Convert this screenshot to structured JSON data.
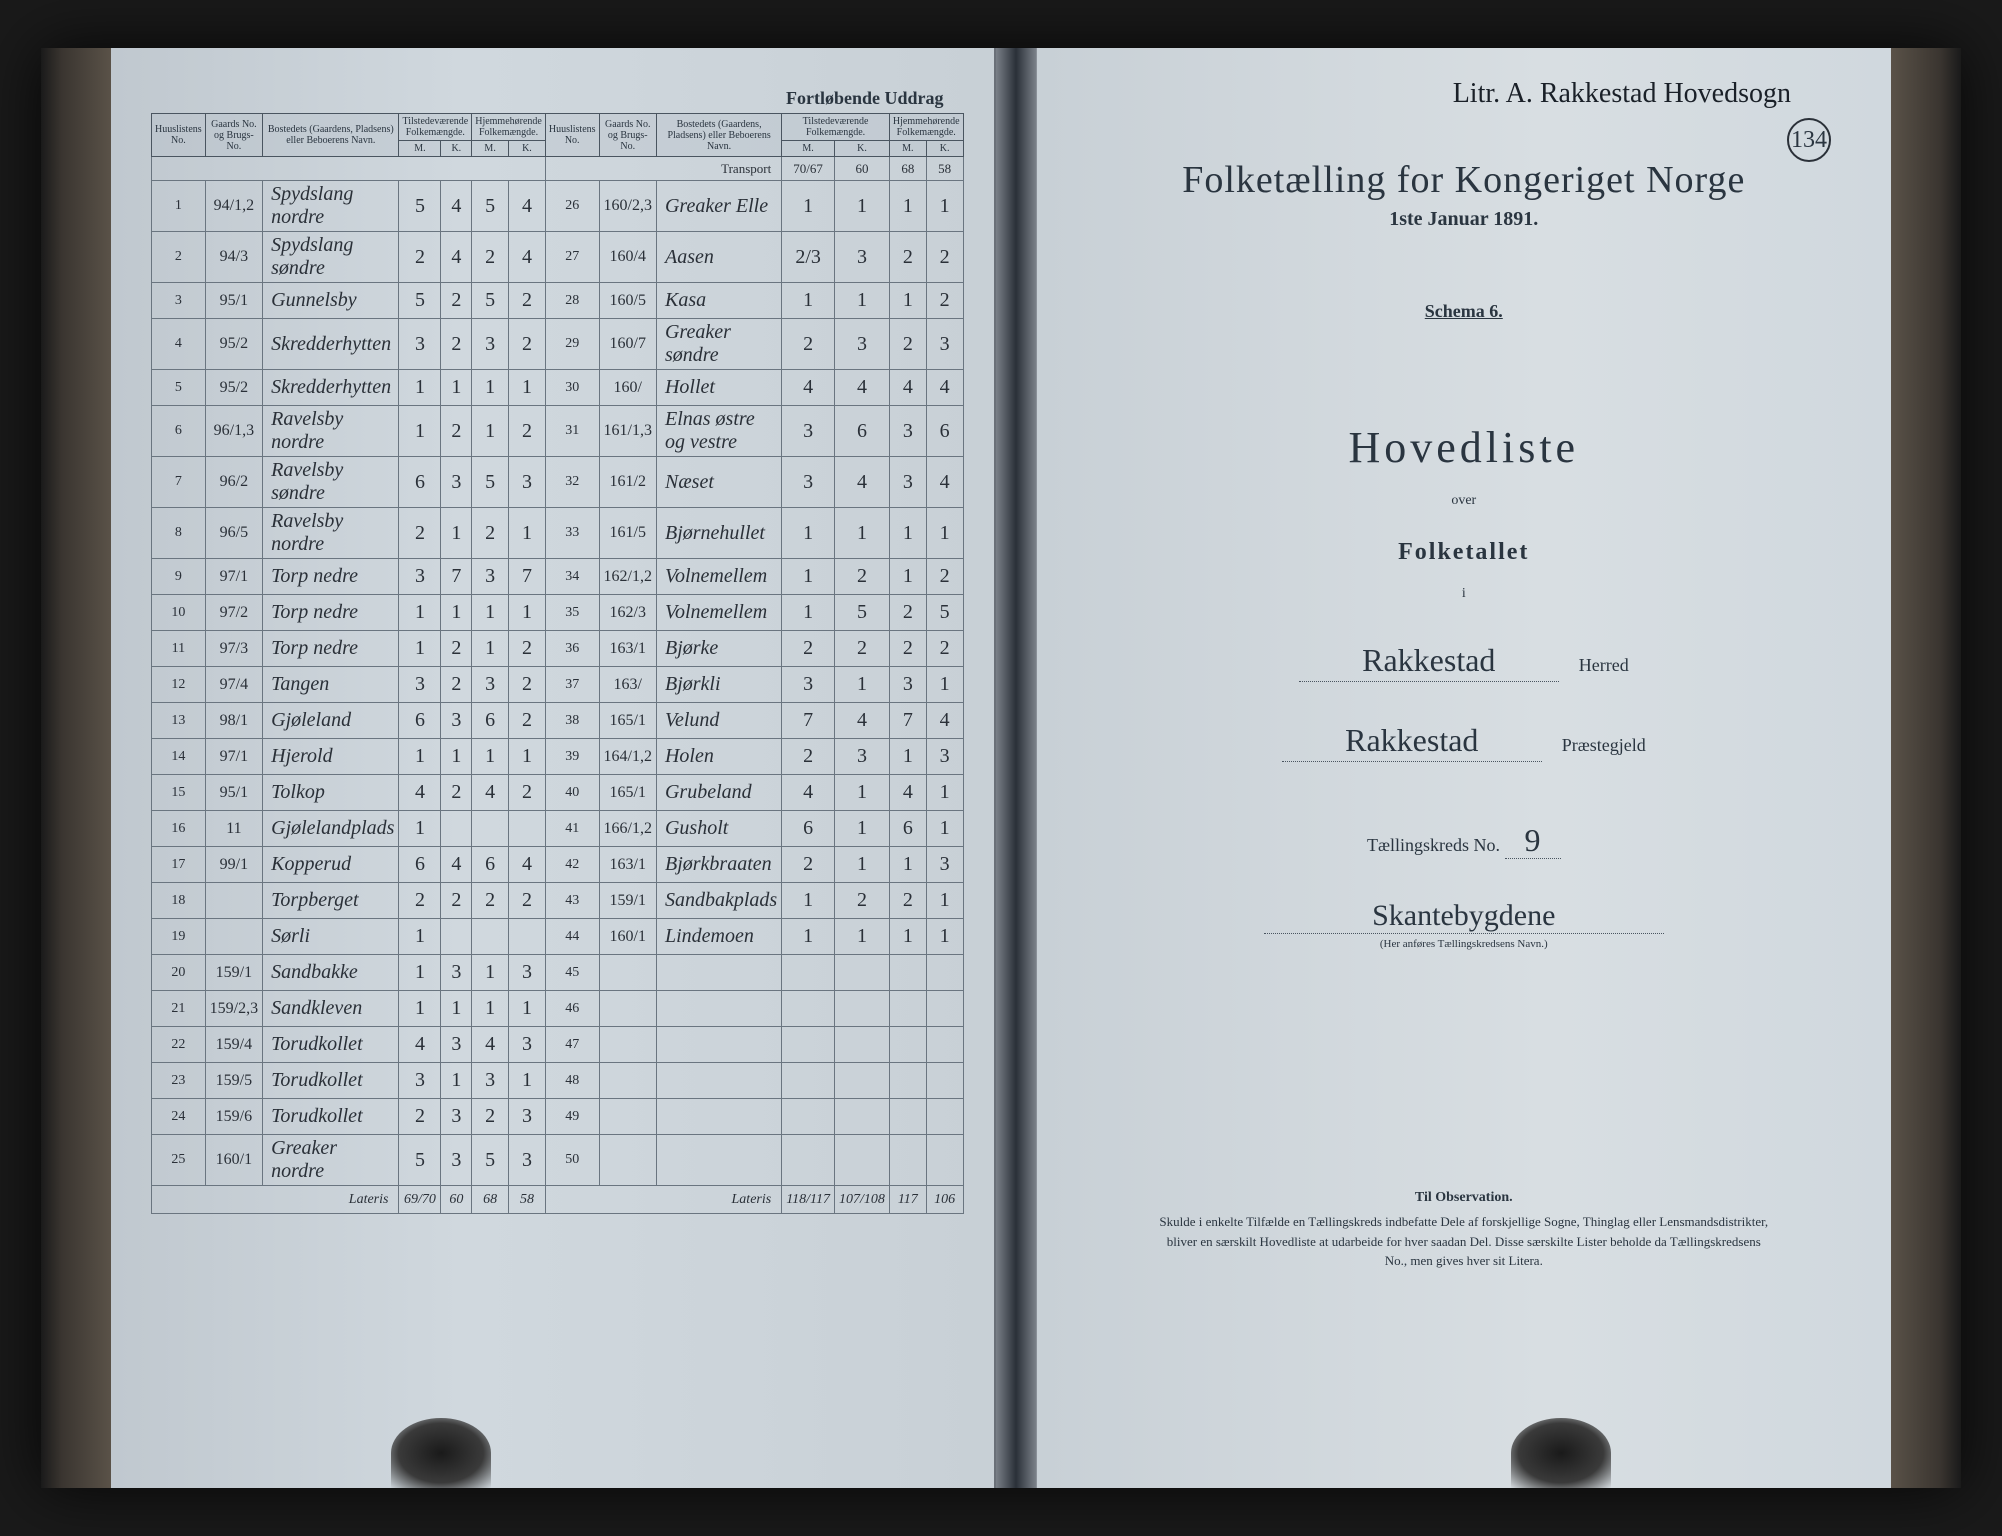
{
  "leftPage": {
    "headerRight": "Fortløbende Uddrag",
    "columnHeaders": {
      "huusliste": "Huuslistens No.",
      "gaardNo": "Gaards No. og Brugs-No.",
      "bosted": "Bostedets (Gaardens, Pladsens) eller Beboerens Navn.",
      "tilstede": "Tilstedeværende Folkemængde.",
      "hjemme": "Hjemmehørende Folkemængde.",
      "m": "M.",
      "k": "K."
    },
    "transport": "Transport",
    "transportVals": [
      "70/67",
      "60",
      "68",
      "58"
    ],
    "rowsLeft": [
      {
        "n": "1",
        "g": "94/1,2",
        "name": "Spydslang nordre",
        "t": [
          "5",
          "4"
        ],
        "h": [
          "5",
          "4"
        ]
      },
      {
        "n": "2",
        "g": "94/3",
        "name": "Spydslang søndre",
        "t": [
          "2",
          "4"
        ],
        "h": [
          "2",
          "4"
        ]
      },
      {
        "n": "3",
        "g": "95/1",
        "name": "Gunnelsby",
        "t": [
          "5",
          "2"
        ],
        "h": [
          "5",
          "2"
        ]
      },
      {
        "n": "4",
        "g": "95/2",
        "name": "Skredderhytten",
        "t": [
          "3",
          "2"
        ],
        "h": [
          "3",
          "2"
        ]
      },
      {
        "n": "5",
        "g": "95/2",
        "name": "Skredderhytten",
        "t": [
          "1",
          "1"
        ],
        "h": [
          "1",
          "1"
        ]
      },
      {
        "n": "6",
        "g": "96/1,3",
        "name": "Ravelsby nordre",
        "t": [
          "1",
          "2"
        ],
        "h": [
          "1",
          "2"
        ]
      },
      {
        "n": "7",
        "g": "96/2",
        "name": "Ravelsby søndre",
        "t": [
          "6",
          "3"
        ],
        "h": [
          "5",
          "3"
        ]
      },
      {
        "n": "8",
        "g": "96/5",
        "name": "Ravelsby nordre",
        "t": [
          "2",
          "1"
        ],
        "h": [
          "2",
          "1"
        ]
      },
      {
        "n": "9",
        "g": "97/1",
        "name": "Torp nedre",
        "t": [
          "3",
          "7"
        ],
        "h": [
          "3",
          "7"
        ]
      },
      {
        "n": "10",
        "g": "97/2",
        "name": "Torp nedre",
        "t": [
          "1",
          "1"
        ],
        "h": [
          "1",
          "1"
        ]
      },
      {
        "n": "11",
        "g": "97/3",
        "name": "Torp nedre",
        "t": [
          "1",
          "2"
        ],
        "h": [
          "1",
          "2"
        ]
      },
      {
        "n": "12",
        "g": "97/4",
        "name": "Tangen",
        "t": [
          "3",
          "2"
        ],
        "h": [
          "3",
          "2"
        ]
      },
      {
        "n": "13",
        "g": "98/1",
        "name": "Gjøleland",
        "t": [
          "6",
          "3"
        ],
        "h": [
          "6",
          "2"
        ]
      },
      {
        "n": "14",
        "g": "97/1",
        "name": "Hjerold",
        "t": [
          "1",
          "1"
        ],
        "h": [
          "1",
          "1"
        ]
      },
      {
        "n": "15",
        "g": "95/1",
        "name": "Tolkop",
        "t": [
          "4",
          "2"
        ],
        "h": [
          "4",
          "2"
        ]
      },
      {
        "n": "16",
        "g": "11",
        "name": "Gjølelandplads",
        "t": [
          "1",
          "",
          "1",
          ""
        ],
        "h": [
          "",
          ""
        ]
      },
      {
        "n": "17",
        "g": "99/1",
        "name": "Kopperud",
        "t": [
          "6",
          "4"
        ],
        "h": [
          "6",
          "4"
        ]
      },
      {
        "n": "18",
        "g": "",
        "name": "Torpberget",
        "t": [
          "2",
          "2"
        ],
        "h": [
          "2",
          "2"
        ]
      },
      {
        "n": "19",
        "g": "",
        "name": "Sørli",
        "t": [
          "1",
          "",
          "1",
          ""
        ],
        "h": [
          "",
          ""
        ]
      },
      {
        "n": "20",
        "g": "159/1",
        "name": "Sandbakke",
        "t": [
          "1",
          "3"
        ],
        "h": [
          "1",
          "3"
        ]
      },
      {
        "n": "21",
        "g": "159/2,3",
        "name": "Sandkleven",
        "t": [
          "1",
          "1"
        ],
        "h": [
          "1",
          "1"
        ]
      },
      {
        "n": "22",
        "g": "159/4",
        "name": "Torudkollet",
        "t": [
          "4",
          "3"
        ],
        "h": [
          "4",
          "3"
        ]
      },
      {
        "n": "23",
        "g": "159/5",
        "name": "Torudkollet",
        "t": [
          "3",
          "1"
        ],
        "h": [
          "3",
          "1"
        ]
      },
      {
        "n": "24",
        "g": "159/6",
        "name": "Torudkollet",
        "t": [
          "2",
          "3"
        ],
        "h": [
          "2",
          "3"
        ]
      },
      {
        "n": "25",
        "g": "160/1",
        "name": "Greaker nordre",
        "t": [
          "5",
          "3"
        ],
        "h": [
          "5",
          "3"
        ]
      }
    ],
    "rowsRight": [
      {
        "n": "26",
        "g": "160/2,3",
        "name": "Greaker Elle",
        "t": [
          "1",
          "1"
        ],
        "h": [
          "1",
          "1"
        ]
      },
      {
        "n": "27",
        "g": "160/4",
        "name": "Aasen",
        "t": [
          "2/3",
          "3"
        ],
        "h": [
          "2",
          "2"
        ]
      },
      {
        "n": "28",
        "g": "160/5",
        "name": "Kasa",
        "t": [
          "1",
          "1"
        ],
        "h": [
          "1",
          "2"
        ]
      },
      {
        "n": "29",
        "g": "160/7",
        "name": "Greaker søndre",
        "t": [
          "2",
          "3"
        ],
        "h": [
          "2",
          "3"
        ]
      },
      {
        "n": "30",
        "g": "160/",
        "name": "Hollet",
        "t": [
          "4",
          "4"
        ],
        "h": [
          "4",
          "4"
        ]
      },
      {
        "n": "31",
        "g": "161/1,3",
        "name": "Elnas østre og vestre",
        "t": [
          "3",
          "6"
        ],
        "h": [
          "3",
          "6"
        ]
      },
      {
        "n": "32",
        "g": "161/2",
        "name": "Næset",
        "t": [
          "3",
          "4"
        ],
        "h": [
          "3",
          "4"
        ]
      },
      {
        "n": "33",
        "g": "161/5",
        "name": "Bjørnehullet",
        "t": [
          "1",
          "1"
        ],
        "h": [
          "1",
          "1"
        ]
      },
      {
        "n": "34",
        "g": "162/1,2",
        "name": "Volnemellem",
        "t": [
          "1",
          "2"
        ],
        "h": [
          "1",
          "2"
        ]
      },
      {
        "n": "35",
        "g": "162/3",
        "name": "Volnemellem",
        "t": [
          "1",
          "5"
        ],
        "h": [
          "2",
          "5"
        ]
      },
      {
        "n": "36",
        "g": "163/1",
        "name": "Bjørke",
        "t": [
          "2",
          "2"
        ],
        "h": [
          "2",
          "2"
        ]
      },
      {
        "n": "37",
        "g": "163/",
        "name": "Bjørkli",
        "t": [
          "3",
          "1"
        ],
        "h": [
          "3",
          "1"
        ]
      },
      {
        "n": "38",
        "g": "165/1",
        "name": "Velund",
        "t": [
          "7",
          "4"
        ],
        "h": [
          "7",
          "4"
        ]
      },
      {
        "n": "39",
        "g": "164/1,2",
        "name": "Holen",
        "t": [
          "2",
          "3"
        ],
        "h": [
          "1",
          "3"
        ]
      },
      {
        "n": "40",
        "g": "165/1",
        "name": "Grubeland",
        "t": [
          "4",
          "1"
        ],
        "h": [
          "4",
          "1"
        ]
      },
      {
        "n": "41",
        "g": "166/1,2",
        "name": "Gusholt",
        "t": [
          "6",
          "1"
        ],
        "h": [
          "6",
          "1"
        ]
      },
      {
        "n": "42",
        "g": "163/1",
        "name": "Bjørkbraaten",
        "t": [
          "2",
          "1"
        ],
        "h": [
          "1",
          "3"
        ]
      },
      {
        "n": "43",
        "g": "159/1",
        "name": "Sandbakplads",
        "t": [
          "1",
          "2"
        ],
        "h": [
          "2",
          "1"
        ]
      },
      {
        "n": "44",
        "g": "160/1",
        "name": "Lindemoen",
        "t": [
          "1",
          "1"
        ],
        "h": [
          "1",
          "1"
        ]
      },
      {
        "n": "45",
        "g": "",
        "name": "",
        "t": [
          "",
          ""
        ],
        "h": [
          "",
          ""
        ]
      },
      {
        "n": "46",
        "g": "",
        "name": "",
        "t": [
          "",
          ""
        ],
        "h": [
          "",
          ""
        ]
      },
      {
        "n": "47",
        "g": "",
        "name": "",
        "t": [
          "",
          ""
        ],
        "h": [
          "",
          ""
        ]
      },
      {
        "n": "48",
        "g": "",
        "name": "",
        "t": [
          "",
          ""
        ],
        "h": [
          "",
          ""
        ]
      },
      {
        "n": "49",
        "g": "",
        "name": "",
        "t": [
          "",
          ""
        ],
        "h": [
          "",
          ""
        ]
      },
      {
        "n": "50",
        "g": "",
        "name": "",
        "t": [
          "",
          ""
        ],
        "h": [
          "",
          ""
        ]
      }
    ],
    "lateris": "Lateris",
    "laterisLeft": [
      "69/70",
      "60",
      "68",
      "58"
    ],
    "laterisRight": [
      "118/117",
      "107/108",
      "117",
      "106"
    ]
  },
  "rightPage": {
    "handwrittenTop": "Litr. A. Rakkestad Hovedsogn",
    "pageNumber": "134",
    "mainTitle": "Folketælling for Kongeriget Norge",
    "date": "1ste Januar 1891.",
    "schema": "Schema 6.",
    "hovedliste": "Hovedliste",
    "over": "over",
    "folketallet": "Folketallet",
    "i": "i",
    "herred": "Rakkestad",
    "herredLabel": "Herred",
    "praestegjeld": "Rakkestad",
    "praestegjeldLabel": "Præstegjeld",
    "kredsLabel": "Tællingskreds No.",
    "kredsNo": "9",
    "kredsName": "Skantebygdene",
    "kredsHint": "(Her anføres Tællingskredsens Navn.)",
    "obsTitle": "Til Observation.",
    "obsText": "Skulde i enkelte Tilfælde en Tællingskreds indbefatte Dele af forskjellige Sogne, Thinglag eller Lensmandsdistrikter, bliver en særskilt Hovedliste at udarbeide for hver saadan Del. Disse særskilte Lister beholde da Tællingskredsens No., men gives hver sit Litera."
  }
}
